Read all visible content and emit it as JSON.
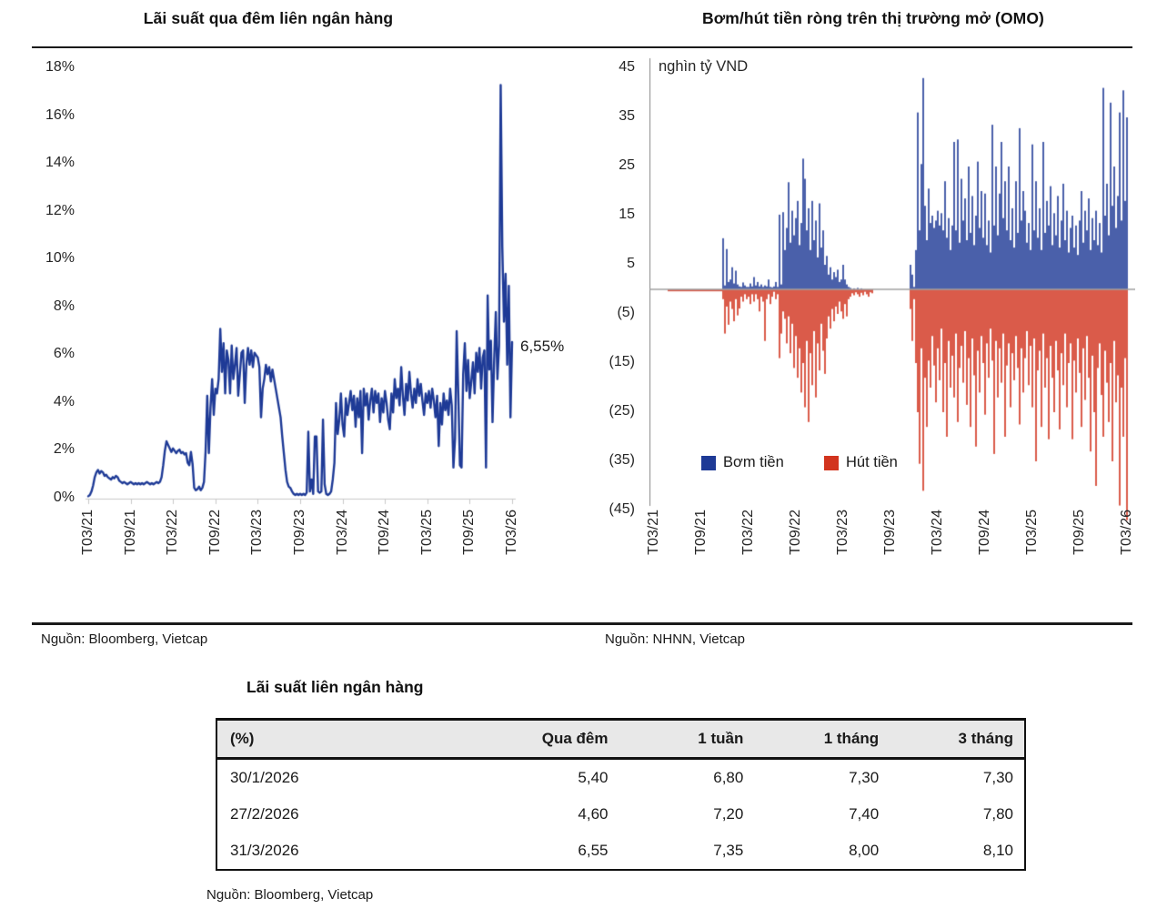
{
  "chart_data": [
    {
      "type": "line",
      "title": "Lãi suất qua đêm liên ngân hàng",
      "unit": "%",
      "color": "#1e3a96",
      "ylim": [
        0,
        18
      ],
      "y_tick_labels": [
        "18%",
        "16%",
        "14%",
        "12%",
        "10%",
        "8%",
        "6%",
        "4%",
        "2%",
        "0%"
      ],
      "x_tick_labels": [
        "T03/21",
        "T09/21",
        "T03/22",
        "T09/22",
        "T03/23",
        "T09/23",
        "T03/24",
        "T09/24",
        "T03/25",
        "T09/25",
        "T03/26"
      ],
      "annotation": {
        "label": "6,55%",
        "value": 6.55
      },
      "source": "Nguồn: Bloomberg, Vietcap",
      "values": [
        0.1,
        0.15,
        0.3,
        0.55,
        0.9,
        1.1,
        1.2,
        1.05,
        1.15,
        1.1,
        0.95,
        1.0,
        0.9,
        0.85,
        0.8,
        0.9,
        0.85,
        0.95,
        0.9,
        0.75,
        0.7,
        0.65,
        0.7,
        0.65,
        0.6,
        0.65,
        0.7,
        0.65,
        0.6,
        0.65,
        0.6,
        0.65,
        0.6,
        0.65,
        0.6,
        0.65,
        0.7,
        0.65,
        0.6,
        0.65,
        0.6,
        0.65,
        0.7,
        0.65,
        0.7,
        0.9,
        1.4,
        2.0,
        2.4,
        2.25,
        2.1,
        1.95,
        2.1,
        2.0,
        1.9,
        2.0,
        2.05,
        1.9,
        1.95,
        1.85,
        1.9,
        1.5,
        1.4,
        1.95,
        1.45,
        0.45,
        0.35,
        0.4,
        0.5,
        0.35,
        0.45,
        0.7,
        2.0,
        4.3,
        1.9,
        3.8,
        5.0,
        3.5,
        4.6,
        4.4,
        5.0,
        7.1,
        5.3,
        6.5,
        4.4,
        6.2,
        5.8,
        4.4,
        6.4,
        5.0,
        5.6,
        6.3,
        4.3,
        5.2,
        6.1,
        6.2,
        4.0,
        5.6,
        6.3,
        5.6,
        6.2,
        5.5,
        6.1,
        6.0,
        5.9,
        5.5,
        3.4,
        4.6,
        5.0,
        5.6,
        5.2,
        5.5,
        4.9,
        5.4,
        5.0,
        4.6,
        4.2,
        3.8,
        3.4,
        2.6,
        1.9,
        1.2,
        0.7,
        0.5,
        0.45,
        0.3,
        0.2,
        0.15,
        0.2,
        0.15,
        0.2,
        0.15,
        0.2,
        0.15,
        0.25,
        2.8,
        0.3,
        0.8,
        0.2,
        2.6,
        2.6,
        0.3,
        0.25,
        0.3,
        3.3,
        0.6,
        0.2,
        0.15,
        0.2,
        0.3,
        0.8,
        1.5,
        4.0,
        2.7,
        3.3,
        4.4,
        3.1,
        2.6,
        4.2,
        3.5,
        4.0,
        4.5,
        3.7,
        4.3,
        3.0,
        4.2,
        3.4,
        4.5,
        1.9,
        4.6,
        3.9,
        4.4,
        3.3,
        4.1,
        4.6,
        3.6,
        4.5,
        4.0,
        4.4,
        3.2,
        4.2,
        3.6,
        4.5,
        4.0,
        3.3,
        2.9,
        4.4,
        3.6,
        5.0,
        4.2,
        4.6,
        3.9,
        5.5,
        4.3,
        3.5,
        4.8,
        4.1,
        5.3,
        4.4,
        3.8,
        4.6,
        4.0,
        5.0,
        4.3,
        4.8,
        4.1,
        3.5,
        4.4,
        4.0,
        4.5,
        3.8,
        4.6,
        4.1,
        3.4,
        4.3,
        2.2,
        4.0,
        3.1,
        4.4,
        3.7,
        4.1,
        3.5,
        4.6,
        3.9,
        1.3,
        2.5,
        7.0,
        4.4,
        1.4,
        1.3,
        5.2,
        6.5,
        4.5,
        5.8,
        4.2,
        4.9,
        5.7,
        4.4,
        6.1,
        5.3,
        6.3,
        4.6,
        5.9,
        6.2,
        1.3,
        8.5,
        5.4,
        6.6,
        3.2,
        5.8,
        7.8,
        5.0,
        6.4,
        17.3,
        10.5,
        7.4,
        9.4,
        5.6,
        8.9,
        3.4,
        6.55
      ]
    },
    {
      "type": "bar",
      "title": "Bơm/hút tiền ròng trên thị trường mở (OMO)",
      "unit_label": "nghìn tỷ VND",
      "ylim": [
        -45,
        45
      ],
      "y_tick_labels": [
        "45",
        "35",
        "25",
        "15",
        "5",
        "(5)",
        "(15)",
        "(25)",
        "(35)",
        "(45)"
      ],
      "x_tick_labels": [
        "T03/21",
        "T09/21",
        "T03/22",
        "T09/22",
        "T03/23",
        "T09/23",
        "T03/24",
        "T09/24",
        "T03/25",
        "T09/25",
        "T03/26"
      ],
      "source": "Nguồn: NHNN, Vietcap",
      "series": [
        {
          "name": "Bơm tiền",
          "color": "#1e3a96",
          "values": [
            0,
            0,
            0,
            0,
            0,
            0,
            0,
            0,
            0,
            0,
            0,
            0,
            0,
            0,
            0,
            0,
            0,
            0,
            0,
            0,
            0,
            0,
            0,
            0,
            0,
            0,
            0,
            0,
            0,
            0,
            0,
            0,
            0,
            0,
            0,
            0,
            0,
            0,
            10.4,
            0.8,
            8.2,
            1.5,
            2.0,
            4.5,
            1.2,
            3.8,
            1.0,
            0.6,
            0.5,
            1.4,
            0.8,
            0.5,
            0.5,
            1.2,
            0.6,
            2.5,
            0.8,
            1.5,
            0.6,
            1.0,
            0.5,
            0.8,
            0.6,
            2.0,
            0.5,
            0.4,
            0.6,
            1.5,
            0.5,
            15.2,
            1.0,
            15.7,
            8.0,
            12.5,
            21.8,
            9.5,
            16.0,
            11.0,
            14.5,
            18.0,
            9.0,
            13.5,
            26.6,
            22.5,
            12.0,
            16.5,
            8.0,
            18.0,
            10.0,
            14.0,
            6.5,
            17.5,
            8.5,
            12.0,
            5.0,
            6.8,
            3.0,
            4.5,
            2.0,
            3.5,
            2.5,
            4.0,
            1.5,
            2.0,
            5.0,
            2.0,
            1.0,
            0.5,
            0.3,
            0,
            0.2,
            0,
            0.3,
            0,
            0.2,
            0,
            0,
            0,
            0,
            0,
            0,
            0,
            0,
            0,
            0,
            0,
            0,
            0,
            0,
            0,
            0,
            0,
            0,
            0,
            0,
            0,
            0,
            0,
            0,
            0,
            0,
            5.0,
            3.0,
            0.5,
            8.0,
            36.0,
            12.0,
            25.5,
            43.0,
            17.0,
            10.0,
            20.5,
            13.5,
            15.0,
            12.5,
            14.0,
            16.0,
            13.0,
            15.5,
            12.0,
            22.0,
            10.5,
            14.5,
            8.0,
            13.0,
            30.0,
            12.0,
            30.5,
            9.5,
            22.5,
            14.0,
            18.5,
            10.0,
            25.0,
            11.5,
            19.0,
            9.0,
            15.0,
            26.0,
            12.5,
            20.0,
            10.5,
            19.5,
            9.0,
            14.0,
            7.5,
            33.5,
            13.0,
            25.0,
            11.0,
            19.5,
            30.0,
            14.5,
            22.0,
            12.0,
            25.0,
            10.0,
            16.5,
            8.5,
            22.0,
            11.5,
            32.8,
            14.0,
            20.0,
            16.0,
            9.5,
            13.5,
            8.0,
            29.5,
            12.0,
            22.0,
            10.5,
            16.5,
            8.0,
            30.0,
            11.5,
            18.0,
            13.0,
            21.0,
            9.0,
            15.5,
            11.0,
            19.0,
            8.5,
            14.0,
            21.5,
            10.0,
            16.0,
            7.5,
            12.5,
            15.0,
            8.5,
            13.0,
            7.0,
            14.0,
            20.0,
            9.5,
            16.0,
            12.0,
            18.5,
            8.0,
            14.5,
            10.0,
            16.0,
            9.0,
            13.5,
            7.5,
            41.0,
            15.0,
            21.5,
            11.0,
            38.0,
            17.0,
            25.0,
            12.5,
            19.0,
            36.0,
            14.0,
            40.5,
            18.0,
            35.0
          ]
        },
        {
          "name": "Hút tiền",
          "color": "#d2341e",
          "values": [
            0,
            0,
            0,
            0,
            0,
            0,
            0,
            0,
            -0.4,
            -0.4,
            -0.4,
            -0.4,
            -0.4,
            -0.4,
            -0.4,
            -0.4,
            -0.4,
            -0.4,
            -0.4,
            -0.4,
            -0.4,
            -0.4,
            -0.4,
            -0.4,
            -0.4,
            -0.4,
            -0.4,
            -0.4,
            -0.4,
            -0.4,
            -0.4,
            -0.4,
            -0.4,
            -0.4,
            -0.4,
            -0.4,
            -0.4,
            -0.4,
            -2.0,
            -9.0,
            -3.5,
            -7.2,
            -2.5,
            -4.0,
            -6.5,
            -2.0,
            -5.3,
            -3.9,
            -1.5,
            -2.5,
            -1.0,
            -2.0,
            -1.5,
            -3.0,
            -1.0,
            -2.5,
            -1.0,
            -2.0,
            -4.5,
            -1.5,
            -2.5,
            -10.5,
            -2.0,
            -1.0,
            -3.0,
            -1.5,
            -0.5,
            -2.0,
            -1.0,
            -14.0,
            -9.0,
            -4.5,
            -6.0,
            -11.0,
            -5.5,
            -13.0,
            -7.0,
            -16.0,
            -9.5,
            -18.0,
            -12.0,
            -21.0,
            -15.0,
            -24.0,
            -10.5,
            -27.0,
            -13.0,
            -19.5,
            -8.5,
            -22.0,
            -11.0,
            -16.5,
            -7.0,
            -12.5,
            -17.2,
            -10.0,
            -5.5,
            -8.0,
            -4.0,
            -6.5,
            -3.5,
            -5.0,
            -2.5,
            -4.5,
            -6.0,
            -3.0,
            -5.5,
            -2.0,
            -1.5,
            -0.8,
            -1.2,
            -0.6,
            -1.0,
            -1.5,
            -0.7,
            -1.2,
            -0.5,
            -1.0,
            -1.5,
            -0.6,
            -0.8,
            0,
            0,
            0,
            0,
            0,
            0,
            0,
            0,
            0,
            0,
            0,
            0,
            0,
            0,
            0,
            0,
            0,
            0,
            0,
            0,
            -4.0,
            -10.5,
            -2.0,
            -15.0,
            -25.0,
            -35.5,
            -12.0,
            -41.0,
            -18.0,
            -28.0,
            -14.5,
            -20.0,
            -9.5,
            -15.5,
            -23.0,
            -12.0,
            -18.5,
            -8.0,
            -25.0,
            -15.0,
            -30.0,
            -10.5,
            -20.0,
            -13.5,
            -22.0,
            -9.0,
            -27.0,
            -16.0,
            -11.5,
            -19.0,
            -8.5,
            -23.5,
            -14.0,
            -28.0,
            -10.0,
            -17.5,
            -32.0,
            -12.5,
            -21.0,
            -9.5,
            -15.0,
            -25.5,
            -11.0,
            -18.0,
            -8.0,
            -14.5,
            -33.5,
            -10.5,
            -22.0,
            -12.0,
            -19.0,
            -9.0,
            -30.0,
            -15.5,
            -11.0,
            -24.0,
            -13.0,
            -18.5,
            -9.5,
            -16.0,
            -27.5,
            -12.0,
            -21.0,
            -14.0,
            -8.5,
            -19.5,
            -11.5,
            -24.0,
            -10.0,
            -35.0,
            -16.5,
            -12.5,
            -28.0,
            -9.0,
            -20.0,
            -14.0,
            -30.5,
            -11.5,
            -18.0,
            -25.0,
            -10.5,
            -16.5,
            -28.5,
            -13.0,
            -19.5,
            -9.0,
            -24.0,
            -15.0,
            -11.0,
            -30.5,
            -14.5,
            -21.0,
            -10.0,
            -17.0,
            -28.0,
            -12.0,
            -22.5,
            -9.5,
            -18.0,
            -33.0,
            -13.5,
            -25.0,
            -40.0,
            -16.0,
            -11.0,
            -21.5,
            -30.0,
            -12.5,
            -19.0,
            -27.0,
            -15.0,
            -35.0,
            -10.5,
            -23.0,
            -17.5,
            -44.0,
            -20.0,
            -30.0,
            -14.0,
            -47.0
          ]
        }
      ],
      "legend_position": "bottom-inside"
    }
  ],
  "table": {
    "title": "Lãi suất liên ngân hàng",
    "col_headers": [
      "(%)",
      "Qua đêm",
      "1 tuần",
      "1 tháng",
      "3 tháng"
    ],
    "rows": [
      [
        "30/1/2026",
        "5,40",
        "6,80",
        "7,30",
        "7,30"
      ],
      [
        "27/2/2026",
        "4,60",
        "7,20",
        "7,40",
        "7,80"
      ],
      [
        "31/3/2026",
        "6,55",
        "7,35",
        "8,00",
        "8,10"
      ]
    ],
    "source": "Nguồn: Bloomberg, Vietcap"
  }
}
